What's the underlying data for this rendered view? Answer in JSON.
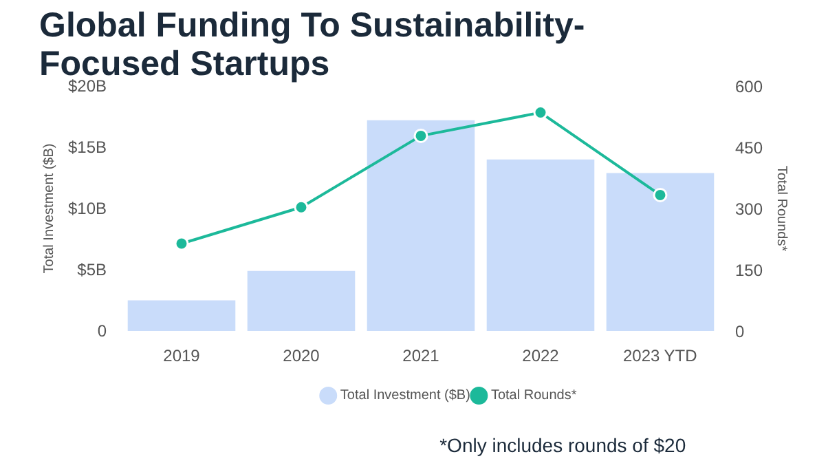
{
  "chart_data": {
    "type": "bar",
    "title": "Global Funding To Sustainability-Focused Startups",
    "categories": [
      "2019",
      "2020",
      "2021",
      "2022",
      "2023 YTD"
    ],
    "series": [
      {
        "name": "Total Investment ($B)",
        "color": "#c9dcfa",
        "values": [
          2.5,
          4.9,
          17.2,
          14.0,
          12.9
        ]
      },
      {
        "name": "Total Rounds*",
        "type": "line",
        "axis": "y2",
        "color": "#1cb99a",
        "values": [
          214,
          303,
          478,
          535,
          333
        ]
      }
    ],
    "ylabel": "Total Investment ($B)",
    "y2label": "Total Rounds*",
    "ylim": [
      0,
      20
    ],
    "yticks": [
      0,
      {
        "value": 5,
        "label": "$5B"
      },
      {
        "value": 10,
        "label": "$10B"
      },
      {
        "value": 15,
        "label": "$15B"
      },
      {
        "value": 20,
        "label": "$20B"
      }
    ],
    "y2lim": [
      0,
      600
    ],
    "y2ticks": [
      0,
      150,
      300,
      450,
      600
    ],
    "marker": "circle",
    "grid": false,
    "legend": "bottom",
    "annotations": [
      "*Only includes rounds of $20"
    ]
  }
}
